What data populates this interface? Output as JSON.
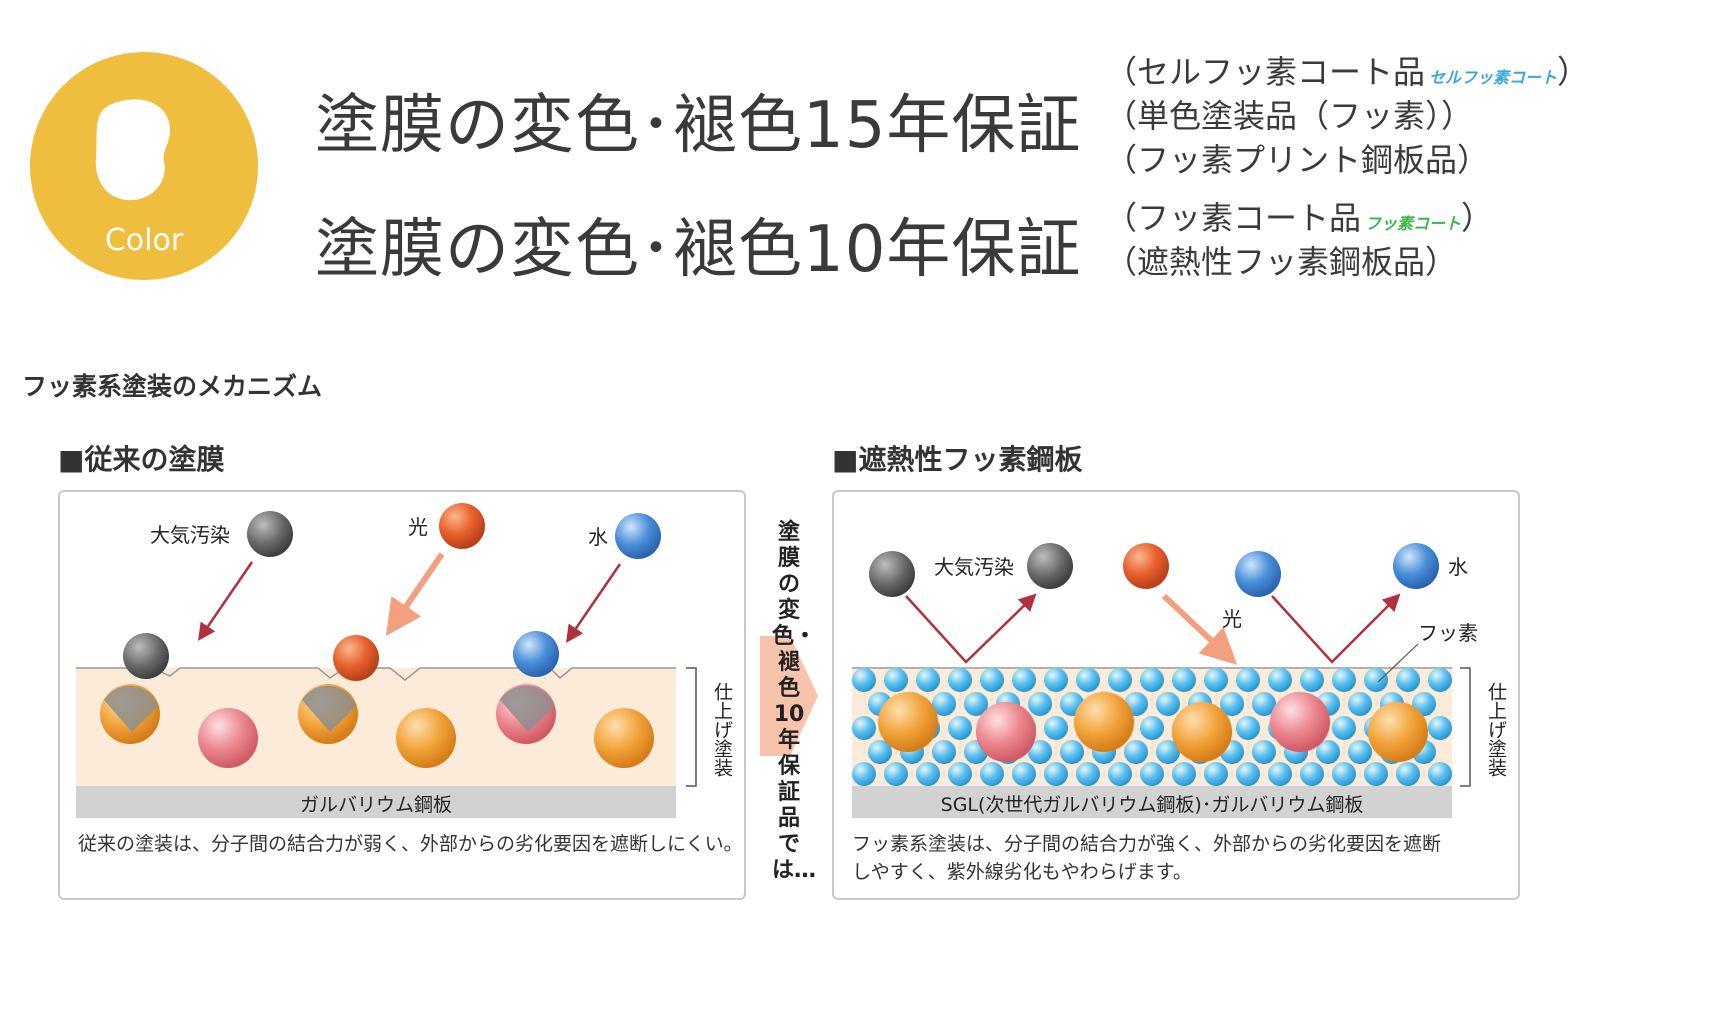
{
  "logo": {
    "label": "Color",
    "color": "#f0be3e"
  },
  "guarantees": [
    {
      "text": "塗膜の変色･褪色15年保証"
    },
    {
      "text": "塗膜の変色･褪色10年保証"
    }
  ],
  "notes": [
    {
      "text": "（セルフッ素コート品",
      "badge": "セルフッ素コート",
      "close": "）"
    },
    {
      "text": "（単色塗装品（フッ素））"
    },
    {
      "text": "（フッ素プリント鋼板品）"
    },
    {
      "text": "（フッ素コート品",
      "badge": "フッ素コート",
      "close": "）"
    },
    {
      "text": "（遮熱性フッ素鋼板品）"
    }
  ],
  "section_title": "フッ素系塗装のメカニズム",
  "left_panel": {
    "title": "■従来の塗膜",
    "labels": {
      "pollution": "大気汚染",
      "light": "光",
      "water": "水",
      "side": "仕上げ塗装",
      "base": "ガルバリウム鋼板"
    },
    "caption": "従来の塗装は、分子間の結合力が弱く、外部からの劣化要因を遮断しにくい。"
  },
  "middle_arrow": {
    "text": "塗膜の変色・褪色10年保証品では…"
  },
  "right_panel": {
    "title": "■遮熱性フッ素鋼板",
    "labels": {
      "pollution": "大気汚染",
      "light": "光",
      "water": "水",
      "fluorine": "フッ素",
      "side": "仕上げ塗装",
      "base": "SGL(次世代ガルバリウム鋼板)･ガルバリウム鋼板"
    },
    "caption_lines": [
      "フッ素系塗装は、分子間の結合力が強く、外部からの劣化要因を遮断",
      "しやすく、紫外線劣化もやわらげます。"
    ]
  },
  "colors": {
    "gray_ball": "#666666",
    "orange_ball": "#e8602c",
    "blue_ball": "#4a90d9",
    "paint": "#fcebd8",
    "steel": "#d2d2d2",
    "arrow_red": "#b0303c",
    "arrow_salmon": "#f2a080"
  }
}
